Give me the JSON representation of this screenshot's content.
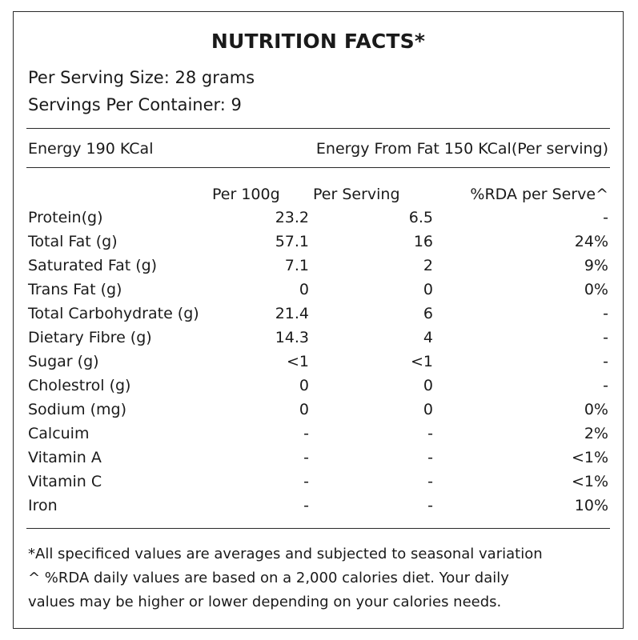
{
  "title": "NUTRITION FACTS*",
  "serving_size": "Per Serving Size: 28 grams",
  "servings_per_container": "Servings Per Container: 9",
  "energy": "Energy 190 KCal",
  "energy_from_fat": "Energy From Fat 150 KCal(Per serving)",
  "columns": {
    "per_100g": "Per 100g",
    "per_serving": "Per Serving",
    "rda": "%RDA per Serve^"
  },
  "rows": [
    {
      "name": "Protein(g)",
      "per_100g": "23.2",
      "per_serving": "6.5",
      "rda": "-"
    },
    {
      "name": "Total Fat (g)",
      "per_100g": "57.1",
      "per_serving": "16",
      "rda": "24%"
    },
    {
      "name": "Saturated Fat (g)",
      "per_100g": "7.1",
      "per_serving": "2",
      "rda": "9%"
    },
    {
      "name": "Trans Fat (g)",
      "per_100g": "0",
      "per_serving": "0",
      "rda": "0%"
    },
    {
      "name": "Total Carbohydrate (g)",
      "per_100g": "21.4",
      "per_serving": "6",
      "rda": "-"
    },
    {
      "name": "Dietary Fibre (g)",
      "per_100g": "14.3",
      "per_serving": "4",
      "rda": "-"
    },
    {
      "name": "Sugar (g)",
      "per_100g": "<1",
      "per_serving": "<1",
      "rda": "-"
    },
    {
      "name": "Cholestrol (g)",
      "per_100g": "0",
      "per_serving": "0",
      "rda": "-"
    },
    {
      "name": "Sodium (mg)",
      "per_100g": "0",
      "per_serving": "0",
      "rda": "0%"
    },
    {
      "name": "Calcuim",
      "per_100g": "-",
      "per_serving": "-",
      "rda": "2%"
    },
    {
      "name": "Vitamin A",
      "per_100g": "-",
      "per_serving": "-",
      "rda": "<1%"
    },
    {
      "name": "Vitamin C",
      "per_100g": "-",
      "per_serving": "-",
      "rda": "<1%"
    },
    {
      "name": "Iron",
      "per_100g": "-",
      "per_serving": "-",
      "rda": "10%"
    }
  ],
  "footnotes": [
    "*All specificed values are averages and subjected to seasonal variation",
    "^ %RDA daily values are based on a 2,000 calories diet. Your daily",
    "values may be higher or lower depending on your calories needs."
  ]
}
